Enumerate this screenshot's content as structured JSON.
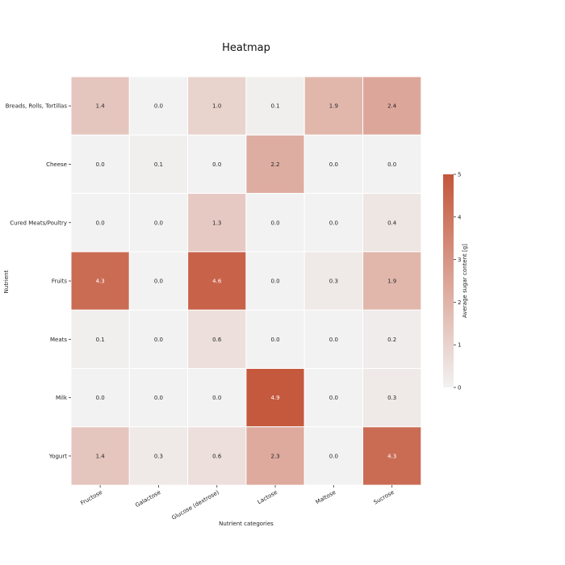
{
  "chart_data": {
    "type": "heatmap",
    "title": "Heatmap",
    "xlabel": "Nutrient categories",
    "ylabel": "Nutrient",
    "x_categories": [
      "Fructose",
      "Galactose",
      "Glucose (dextrose)",
      "Lactose",
      "Maltose",
      "Sucrose"
    ],
    "y_categories": [
      "Breads, Rolls, Tortillas",
      "Cheese",
      "Cured Meats/Poultry",
      "Fruits",
      "Meats",
      "Milk",
      "Yogurt"
    ],
    "values": [
      [
        1.4,
        0.0,
        1.0,
        0.1,
        1.9,
        2.4
      ],
      [
        0.0,
        0.1,
        0.0,
        2.2,
        0.0,
        0.0
      ],
      [
        0.0,
        0.0,
        1.3,
        0.0,
        0.0,
        0.4
      ],
      [
        4.3,
        0.0,
        4.6,
        0.0,
        0.3,
        1.9
      ],
      [
        0.1,
        0.0,
        0.6,
        0.0,
        0.0,
        0.2
      ],
      [
        0.0,
        0.0,
        0.0,
        4.9,
        0.0,
        0.3
      ],
      [
        1.4,
        0.3,
        0.6,
        2.3,
        0.0,
        4.3
      ]
    ],
    "value_format": "0.0",
    "colorbar": {
      "label": "Average sugar content [g]",
      "range": [
        0,
        5
      ],
      "ticks": [
        "0",
        "1",
        "2",
        "3",
        "4",
        "5"
      ],
      "color_low": "#f2f2f2",
      "color_high": "#c4563a"
    },
    "grid": false,
    "legend": "right"
  }
}
